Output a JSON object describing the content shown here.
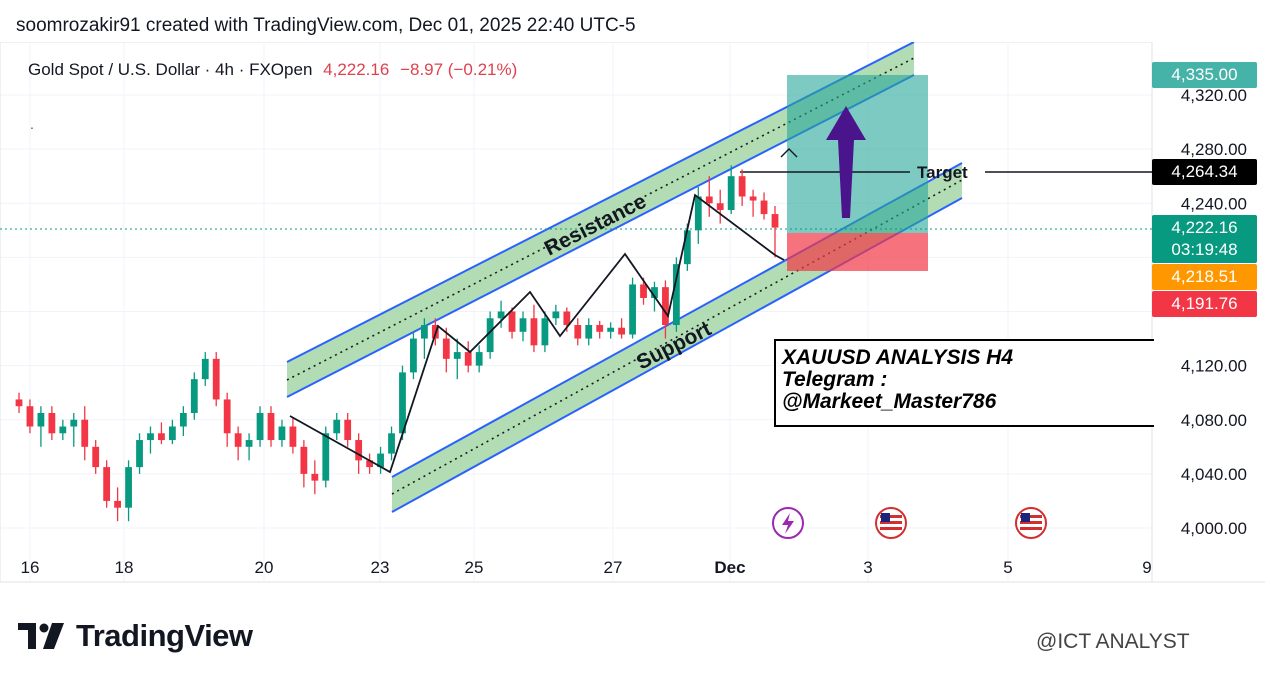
{
  "header": {
    "attribution": "soomrozakir91 created with TradingView.com, Dec 01, 2025 22:40 UTC-5"
  },
  "symbol": {
    "name": "Gold Spot / U.S. Dollar · 4h · FXOpen",
    "price": "4,222.16",
    "change": "−8.97 (−0.21%)"
  },
  "dot_text": ".",
  "annotations": {
    "resistance": "Resistance",
    "support": "Support",
    "target": "Target",
    "analysis_line1": "XAUUSD ANALYSIS  H4",
    "analysis_line2": "Telegram :",
    "analysis_line3": "@Markeet_Master786"
  },
  "price_labels": {
    "tp": "4,335.00",
    "target": "4,264.34",
    "current": "4,222.16",
    "countdown": "03:19:48",
    "entry": "4,218.51",
    "sl": "4,191.76"
  },
  "colors": {
    "up": "#089981",
    "down": "#f23645",
    "channel_fill": "#a5d6a7",
    "channel_line": "#2962ff",
    "tp_zone": "#26a69a",
    "sl_zone": "#f23645",
    "arrow": "#4a148c",
    "entry_label": "#ff9800"
  },
  "branding": {
    "logo": "TradingView",
    "watermark": "@ICT ANALYST"
  },
  "chart_data": {
    "type": "candlestick",
    "y_ticks": [
      "4,320.00",
      "4,280.00",
      "4,240.00",
      "4,120.00",
      "4,080.00",
      "4,040.00",
      "4,000.00"
    ],
    "x_ticks": [
      "16",
      "18",
      "20",
      "23",
      "25",
      "27",
      "Dec",
      "3",
      "5",
      "9"
    ],
    "ylim": [
      3980,
      4350
    ],
    "candles": [
      {
        "o": 4095,
        "h": 4100,
        "l": 4085,
        "c": 4090
      },
      {
        "o": 4090,
        "h": 4095,
        "l": 4070,
        "c": 4075
      },
      {
        "o": 4075,
        "h": 4090,
        "l": 4060,
        "c": 4085
      },
      {
        "o": 4085,
        "h": 4090,
        "l": 4065,
        "c": 4070
      },
      {
        "o": 4070,
        "h": 4080,
        "l": 4065,
        "c": 4075
      },
      {
        "o": 4075,
        "h": 4085,
        "l": 4060,
        "c": 4080
      },
      {
        "o": 4080,
        "h": 4090,
        "l": 4050,
        "c": 4060
      },
      {
        "o": 4060,
        "h": 4065,
        "l": 4040,
        "c": 4045
      },
      {
        "o": 4045,
        "h": 4050,
        "l": 4015,
        "c": 4020
      },
      {
        "o": 4020,
        "h": 4030,
        "l": 4005,
        "c": 4015
      },
      {
        "o": 4015,
        "h": 4050,
        "l": 4005,
        "c": 4045
      },
      {
        "o": 4045,
        "h": 4070,
        "l": 4040,
        "c": 4065
      },
      {
        "o": 4065,
        "h": 4075,
        "l": 4055,
        "c": 4070
      },
      {
        "o": 4070,
        "h": 4078,
        "l": 4062,
        "c": 4065
      },
      {
        "o": 4065,
        "h": 4080,
        "l": 4062,
        "c": 4075
      },
      {
        "o": 4075,
        "h": 4090,
        "l": 4068,
        "c": 4085
      },
      {
        "o": 4085,
        "h": 4115,
        "l": 4080,
        "c": 4110
      },
      {
        "o": 4110,
        "h": 4130,
        "l": 4105,
        "c": 4125
      },
      {
        "o": 4125,
        "h": 4130,
        "l": 4090,
        "c": 4095
      },
      {
        "o": 4095,
        "h": 4100,
        "l": 4060,
        "c": 4070
      },
      {
        "o": 4070,
        "h": 4075,
        "l": 4050,
        "c": 4060
      },
      {
        "o": 4060,
        "h": 4070,
        "l": 4050,
        "c": 4065
      },
      {
        "o": 4065,
        "h": 4090,
        "l": 4060,
        "c": 4085
      },
      {
        "o": 4085,
        "h": 4090,
        "l": 4060,
        "c": 4065
      },
      {
        "o": 4065,
        "h": 4080,
        "l": 4060,
        "c": 4075
      },
      {
        "o": 4075,
        "h": 4082,
        "l": 4055,
        "c": 4060
      },
      {
        "o": 4060,
        "h": 4065,
        "l": 4030,
        "c": 4040
      },
      {
        "o": 4040,
        "h": 4050,
        "l": 4025,
        "c": 4035
      },
      {
        "o": 4035,
        "h": 4075,
        "l": 4030,
        "c": 4070
      },
      {
        "o": 4070,
        "h": 4085,
        "l": 4065,
        "c": 4080
      },
      {
        "o": 4080,
        "h": 4085,
        "l": 4060,
        "c": 4065
      },
      {
        "o": 4065,
        "h": 4070,
        "l": 4040,
        "c": 4050
      },
      {
        "o": 4050,
        "h": 4055,
        "l": 4040,
        "c": 4045
      },
      {
        "o": 4045,
        "h": 4060,
        "l": 4040,
        "c": 4055
      },
      {
        "o": 4055,
        "h": 4075,
        "l": 4050,
        "c": 4070
      },
      {
        "o": 4070,
        "h": 4120,
        "l": 4065,
        "c": 4115
      },
      {
        "o": 4115,
        "h": 4145,
        "l": 4110,
        "c": 4140
      },
      {
        "o": 4140,
        "h": 4155,
        "l": 4125,
        "c": 4150
      },
      {
        "o": 4150,
        "h": 4155,
        "l": 4135,
        "c": 4140
      },
      {
        "o": 4140,
        "h": 4148,
        "l": 4115,
        "c": 4125
      },
      {
        "o": 4125,
        "h": 4140,
        "l": 4110,
        "c": 4130
      },
      {
        "o": 4130,
        "h": 4138,
        "l": 4115,
        "c": 4120
      },
      {
        "o": 4120,
        "h": 4135,
        "l": 4115,
        "c": 4130
      },
      {
        "o": 4130,
        "h": 4160,
        "l": 4125,
        "c": 4155
      },
      {
        "o": 4155,
        "h": 4168,
        "l": 4148,
        "c": 4160
      },
      {
        "o": 4160,
        "h": 4163,
        "l": 4140,
        "c": 4145
      },
      {
        "o": 4145,
        "h": 4160,
        "l": 4138,
        "c": 4155
      },
      {
        "o": 4155,
        "h": 4165,
        "l": 4130,
        "c": 4135
      },
      {
        "o": 4135,
        "h": 4160,
        "l": 4130,
        "c": 4155
      },
      {
        "o": 4155,
        "h": 4165,
        "l": 4150,
        "c": 4160
      },
      {
        "o": 4160,
        "h": 4163,
        "l": 4145,
        "c": 4150
      },
      {
        "o": 4150,
        "h": 4155,
        "l": 4135,
        "c": 4140
      },
      {
        "o": 4140,
        "h": 4155,
        "l": 4135,
        "c": 4150
      },
      {
        "o": 4150,
        "h": 4153,
        "l": 4140,
        "c": 4145
      },
      {
        "o": 4145,
        "h": 4152,
        "l": 4140,
        "c": 4148
      },
      {
        "o": 4148,
        "h": 4155,
        "l": 4140,
        "c": 4143
      },
      {
        "o": 4143,
        "h": 4185,
        "l": 4140,
        "c": 4180
      },
      {
        "o": 4180,
        "h": 4185,
        "l": 4165,
        "c": 4170
      },
      {
        "o": 4170,
        "h": 4182,
        "l": 4160,
        "c": 4178
      },
      {
        "o": 4178,
        "h": 4183,
        "l": 4140,
        "c": 4150
      },
      {
        "o": 4150,
        "h": 4200,
        "l": 4145,
        "c": 4195
      },
      {
        "o": 4195,
        "h": 4225,
        "l": 4190,
        "c": 4220
      },
      {
        "o": 4220,
        "h": 4252,
        "l": 4210,
        "c": 4245
      },
      {
        "o": 4245,
        "h": 4260,
        "l": 4230,
        "c": 4240
      },
      {
        "o": 4240,
        "h": 4250,
        "l": 4225,
        "c": 4235
      },
      {
        "o": 4235,
        "h": 4268,
        "l": 4232,
        "c": 4260
      },
      {
        "o": 4260,
        "h": 4265,
        "l": 4238,
        "c": 4245
      },
      {
        "o": 4245,
        "h": 4250,
        "l": 4230,
        "c": 4242
      },
      {
        "o": 4242,
        "h": 4248,
        "l": 4228,
        "c": 4232
      },
      {
        "o": 4232,
        "h": 4238,
        "l": 4200,
        "c": 4222
      }
    ]
  }
}
